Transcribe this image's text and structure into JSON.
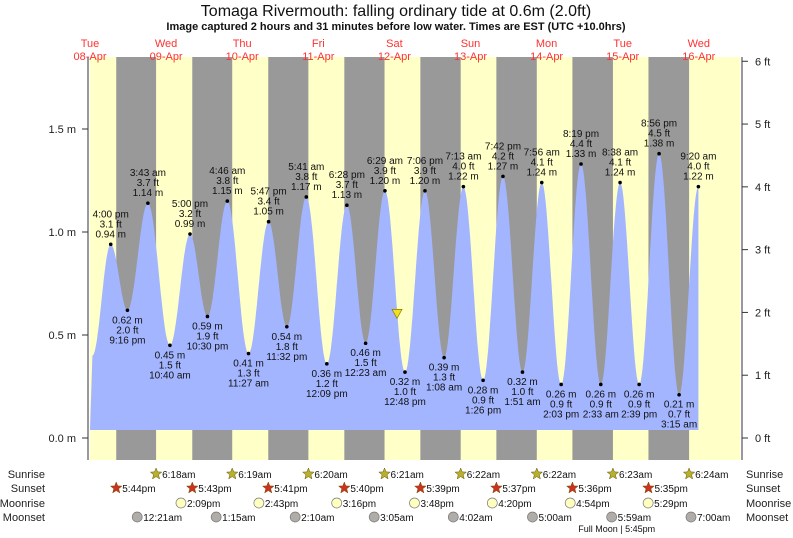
{
  "title": "Tomaga Rivermouth: falling  ordinary tide at 0.6m (2.0ft)",
  "subtitle": "Image captured 2 hours and 31 minutes before low water. Times are EST (UTC +10.0hrs)",
  "colors": {
    "day": "#ffffc8",
    "night": "#999999",
    "water": "#a3b5ff",
    "dates": "#ff3030",
    "current_marker": "#f0e020",
    "sunrise": "#b8b030",
    "sunset": "#d03020",
    "moonrise": "#ffffc0",
    "moonset": "#b0aca8"
  },
  "chart_data": {
    "type": "area",
    "days": [
      {
        "dow": "Tue",
        "date": "08-Apr"
      },
      {
        "dow": "Wed",
        "date": "09-Apr"
      },
      {
        "dow": "Thu",
        "date": "10-Apr"
      },
      {
        "dow": "Fri",
        "date": "11-Apr"
      },
      {
        "dow": "Sat",
        "date": "12-Apr"
      },
      {
        "dow": "Sun",
        "date": "13-Apr"
      },
      {
        "dow": "Mon",
        "date": "14-Apr"
      },
      {
        "dow": "Tue",
        "date": "15-Apr"
      },
      {
        "dow": "Wed",
        "date": "16-Apr"
      }
    ],
    "y_left": {
      "unit": "m",
      "ticks": [
        "0.0 m",
        "0.5 m",
        "1.0 m",
        "1.5 m"
      ],
      "values": [
        0,
        0.5,
        1.0,
        1.5
      ]
    },
    "y_right": {
      "unit": "ft",
      "ticks": [
        "0 ft",
        "1 ft",
        "2 ft",
        "3 ft",
        "4 ft",
        "5 ft",
        "6 ft"
      ],
      "values": [
        0,
        1,
        2,
        3,
        4,
        5,
        6
      ]
    },
    "current": {
      "date": "12-Apr",
      "time": "10:17 am",
      "m": 0.6,
      "ft": 2.0,
      "state": "falling"
    },
    "extremes": [
      {
        "type": "high",
        "date": "08-Apr",
        "time": "4:00 pm",
        "ft": "3.1 ft",
        "m": "0.94 m"
      },
      {
        "type": "low",
        "date": "08-Apr",
        "time": "9:16 pm",
        "ft": "2.0 ft",
        "m": "0.62 m"
      },
      {
        "type": "high",
        "date": "09-Apr",
        "time": "3:43 am",
        "ft": "3.7 ft",
        "m": "1.14 m"
      },
      {
        "type": "low",
        "date": "09-Apr",
        "time": "10:40 am",
        "ft": "1.5 ft",
        "m": "0.45 m"
      },
      {
        "type": "high",
        "date": "09-Apr",
        "time": "5:00 pm",
        "ft": "3.2 ft",
        "m": "0.99 m"
      },
      {
        "type": "low",
        "date": "09-Apr",
        "time": "10:30 pm",
        "ft": "1.9 ft",
        "m": "0.59 m"
      },
      {
        "type": "high",
        "date": "10-Apr",
        "time": "4:46 am",
        "ft": "3.8 ft",
        "m": "1.15 m"
      },
      {
        "type": "low",
        "date": "10-Apr",
        "time": "11:27 am",
        "ft": "1.3 ft",
        "m": "0.41 m"
      },
      {
        "type": "high",
        "date": "10-Apr",
        "time": "5:47 pm",
        "ft": "3.4 ft",
        "m": "1.05 m"
      },
      {
        "type": "low",
        "date": "10-Apr",
        "time": "11:32 pm",
        "ft": "1.8 ft",
        "m": "0.54 m"
      },
      {
        "type": "high",
        "date": "11-Apr",
        "time": "5:41 am",
        "ft": "3.8 ft",
        "m": "1.17 m"
      },
      {
        "type": "low",
        "date": "11-Apr",
        "time": "12:09 pm",
        "ft": "1.2 ft",
        "m": "0.36 m"
      },
      {
        "type": "high",
        "date": "11-Apr",
        "time": "6:28 pm",
        "ft": "3.7 ft",
        "m": "1.13 m"
      },
      {
        "type": "low",
        "date": "12-Apr",
        "time": "12:23 am",
        "ft": "1.5 ft",
        "m": "0.46 m"
      },
      {
        "type": "high",
        "date": "12-Apr",
        "time": "6:29 am",
        "ft": "3.9 ft",
        "m": "1.20 m"
      },
      {
        "type": "low",
        "date": "12-Apr",
        "time": "12:48 pm",
        "ft": "1.0 ft",
        "m": "0.32 m"
      },
      {
        "type": "high",
        "date": "12-Apr",
        "time": "7:06 pm",
        "ft": "3.9 ft",
        "m": "1.20 m"
      },
      {
        "type": "low",
        "date": "13-Apr",
        "time": "1:08 am",
        "ft": "1.3 ft",
        "m": "0.39 m"
      },
      {
        "type": "high",
        "date": "13-Apr",
        "time": "7:13 am",
        "ft": "4.0 ft",
        "m": "1.22 m"
      },
      {
        "type": "low",
        "date": "13-Apr",
        "time": "1:26 pm",
        "ft": "0.9 ft",
        "m": "0.28 m"
      },
      {
        "type": "high",
        "date": "13-Apr",
        "time": "7:42 pm",
        "ft": "4.2 ft",
        "m": "1.27 m"
      },
      {
        "type": "low",
        "date": "14-Apr",
        "time": "1:51 am",
        "ft": "1.0 ft",
        "m": "0.32 m"
      },
      {
        "type": "high",
        "date": "14-Apr",
        "time": "7:56 am",
        "ft": "4.1 ft",
        "m": "1.24 m"
      },
      {
        "type": "low",
        "date": "14-Apr",
        "time": "2:03 pm",
        "ft": "0.9 ft",
        "m": "0.26 m"
      },
      {
        "type": "high",
        "date": "14-Apr",
        "time": "8:19 pm",
        "ft": "4.4 ft",
        "m": "1.33 m"
      },
      {
        "type": "low",
        "date": "15-Apr",
        "time": "2:33 am",
        "ft": "0.9 ft",
        "m": "0.26 m"
      },
      {
        "type": "high",
        "date": "15-Apr",
        "time": "8:38 am",
        "ft": "4.1 ft",
        "m": "1.24 m"
      },
      {
        "type": "low",
        "date": "15-Apr",
        "time": "2:39 pm",
        "ft": "0.9 ft",
        "m": "0.26 m"
      },
      {
        "type": "high",
        "date": "15-Apr",
        "time": "8:56 pm",
        "ft": "4.5 ft",
        "m": "1.38 m"
      },
      {
        "type": "low",
        "date": "16-Apr",
        "time": "3:15 am",
        "ft": "0.7 ft",
        "m": "0.21 m"
      },
      {
        "type": "high",
        "date": "16-Apr",
        "time": "9:20 am",
        "ft": "4.0 ft",
        "m": "1.22 m"
      }
    ]
  },
  "astro": {
    "labels": {
      "sunrise": "Sunrise",
      "sunset": "Sunset",
      "moonrise": "Moonrise",
      "moonset": "Moonset"
    },
    "sunrise": [
      {
        "date": "09-Apr",
        "time": "6:18am"
      },
      {
        "date": "10-Apr",
        "time": "6:19am"
      },
      {
        "date": "11-Apr",
        "time": "6:20am"
      },
      {
        "date": "12-Apr",
        "time": "6:21am"
      },
      {
        "date": "13-Apr",
        "time": "6:22am"
      },
      {
        "date": "14-Apr",
        "time": "6:22am"
      },
      {
        "date": "15-Apr",
        "time": "6:23am"
      },
      {
        "date": "16-Apr",
        "time": "6:24am"
      }
    ],
    "sunset": [
      {
        "date": "08-Apr",
        "time": "5:44pm"
      },
      {
        "date": "09-Apr",
        "time": "5:43pm"
      },
      {
        "date": "10-Apr",
        "time": "5:41pm"
      },
      {
        "date": "11-Apr",
        "time": "5:40pm"
      },
      {
        "date": "12-Apr",
        "time": "5:39pm"
      },
      {
        "date": "13-Apr",
        "time": "5:37pm"
      },
      {
        "date": "14-Apr",
        "time": "5:36pm"
      },
      {
        "date": "15-Apr",
        "time": "5:35pm"
      }
    ],
    "moonrise": [
      {
        "date": "09-Apr",
        "time": "2:09pm"
      },
      {
        "date": "10-Apr",
        "time": "2:43pm"
      },
      {
        "date": "11-Apr",
        "time": "3:16pm"
      },
      {
        "date": "12-Apr",
        "time": "3:48pm"
      },
      {
        "date": "13-Apr",
        "time": "4:20pm"
      },
      {
        "date": "14-Apr",
        "time": "4:54pm"
      },
      {
        "date": "15-Apr",
        "time": "5:29pm"
      }
    ],
    "moonset": [
      {
        "date": "09-Apr",
        "time": "12:21am"
      },
      {
        "date": "10-Apr",
        "time": "1:15am"
      },
      {
        "date": "11-Apr",
        "time": "2:10am"
      },
      {
        "date": "12-Apr",
        "time": "3:05am"
      },
      {
        "date": "13-Apr",
        "time": "4:02am"
      },
      {
        "date": "14-Apr",
        "time": "5:00am"
      },
      {
        "date": "15-Apr",
        "time": "5:59am"
      },
      {
        "date": "16-Apr",
        "time": "7:00am"
      }
    ],
    "moon_phase": {
      "date": "15-Apr",
      "text": "Full Moon | 5:45pm"
    }
  }
}
